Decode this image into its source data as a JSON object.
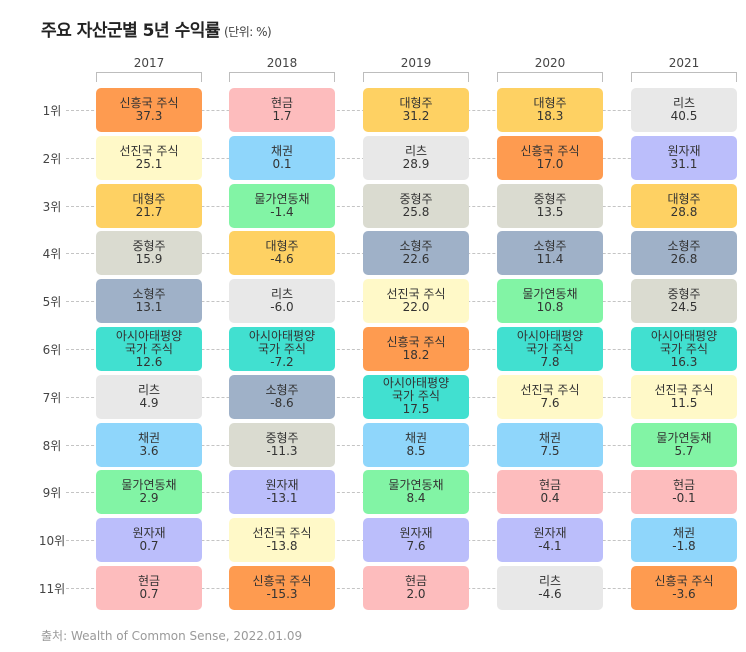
{
  "title": "주요 자산군별 5년 수익률",
  "unit": "(단위: %)",
  "source": "출처: Wealth of Common Sense, 2022.01.09",
  "asset_colors": {
    "신흥국 주식": "#fe9b50",
    "선진국 주식": "#fff9c8",
    "대형주": "#fed163",
    "중형주": "#dadbd0",
    "소형주": "#9fb1c8",
    "아시아태평양 국가 주식": "#41e0d0",
    "리츠": "#e8e8e8",
    "채권": "#8fd6fb",
    "물가연동채": "#82f4a5",
    "원자재": "#bbbefb",
    "현금": "#fdbcbd"
  },
  "chart_data": {
    "type": "table",
    "title": "주요 자산군별 5년 수익률",
    "unit": "(단위: %)",
    "ranks": [
      "1위",
      "2위",
      "3위",
      "4위",
      "5위",
      "6위",
      "7위",
      "8위",
      "9위",
      "10위",
      "11위"
    ],
    "years": [
      {
        "year": "2017",
        "entries": [
          {
            "asset": "신흥국 주식",
            "value": "37.3"
          },
          {
            "asset": "선진국 주식",
            "value": "25.1"
          },
          {
            "asset": "대형주",
            "value": "21.7"
          },
          {
            "asset": "중형주",
            "value": "15.9"
          },
          {
            "asset": "소형주",
            "value": "13.1"
          },
          {
            "asset": "아시아태평양 국가 주식",
            "value": "12.6"
          },
          {
            "asset": "리츠",
            "value": "4.9"
          },
          {
            "asset": "채권",
            "value": "3.6"
          },
          {
            "asset": "물가연동채",
            "value": "2.9"
          },
          {
            "asset": "원자재",
            "value": "0.7"
          },
          {
            "asset": "현금",
            "value": "0.7"
          }
        ]
      },
      {
        "year": "2018",
        "entries": [
          {
            "asset": "현금",
            "value": "1.7"
          },
          {
            "asset": "채권",
            "value": "0.1"
          },
          {
            "asset": "물가연동채",
            "value": "-1.4"
          },
          {
            "asset": "대형주",
            "value": "-4.6"
          },
          {
            "asset": "리츠",
            "value": "-6.0"
          },
          {
            "asset": "아시아태평양 국가 주식",
            "value": "-7.2"
          },
          {
            "asset": "소형주",
            "value": "-8.6"
          },
          {
            "asset": "중형주",
            "value": "-11.3"
          },
          {
            "asset": "원자재",
            "value": "-13.1"
          },
          {
            "asset": "선진국 주식",
            "value": "-13.8"
          },
          {
            "asset": "신흥국 주식",
            "value": "-15.3"
          }
        ]
      },
      {
        "year": "2019",
        "entries": [
          {
            "asset": "대형주",
            "value": "31.2"
          },
          {
            "asset": "리츠",
            "value": "28.9"
          },
          {
            "asset": "중형주",
            "value": "25.8"
          },
          {
            "asset": "소형주",
            "value": "22.6"
          },
          {
            "asset": "선진국 주식",
            "value": "22.0"
          },
          {
            "asset": "신흥국 주식",
            "value": "18.2"
          },
          {
            "asset": "아시아태평양 국가 주식",
            "value": "17.5"
          },
          {
            "asset": "채권",
            "value": "8.5"
          },
          {
            "asset": "물가연동채",
            "value": "8.4"
          },
          {
            "asset": "원자재",
            "value": "7.6"
          },
          {
            "asset": "현금",
            "value": "2.0"
          }
        ]
      },
      {
        "year": "2020",
        "entries": [
          {
            "asset": "대형주",
            "value": "18.3"
          },
          {
            "asset": "신흥국 주식",
            "value": "17.0"
          },
          {
            "asset": "중형주",
            "value": "13.5"
          },
          {
            "asset": "소형주",
            "value": "11.4"
          },
          {
            "asset": "물가연동채",
            "value": "10.8"
          },
          {
            "asset": "아시아태평양 국가 주식",
            "value": "7.8"
          },
          {
            "asset": "선진국 주식",
            "value": "7.6"
          },
          {
            "asset": "채권",
            "value": "7.5"
          },
          {
            "asset": "현금",
            "value": "0.4"
          },
          {
            "asset": "원자재",
            "value": "-4.1"
          },
          {
            "asset": "리츠",
            "value": "-4.6"
          }
        ]
      },
      {
        "year": "2021",
        "entries": [
          {
            "asset": "리츠",
            "value": "40.5"
          },
          {
            "asset": "원자재",
            "value": "31.1"
          },
          {
            "asset": "대형주",
            "value": "28.8"
          },
          {
            "asset": "소형주",
            "value": "26.8"
          },
          {
            "asset": "중형주",
            "value": "24.5"
          },
          {
            "asset": "아시아태평양 국가 주식",
            "value": "16.3"
          },
          {
            "asset": "선진국 주식",
            "value": "11.5"
          },
          {
            "asset": "물가연동채",
            "value": "5.7"
          },
          {
            "asset": "현금",
            "value": "-0.1"
          },
          {
            "asset": "채권",
            "value": "-1.8"
          },
          {
            "asset": "신흥국 주식",
            "value": "-3.6"
          }
        ]
      }
    ]
  }
}
